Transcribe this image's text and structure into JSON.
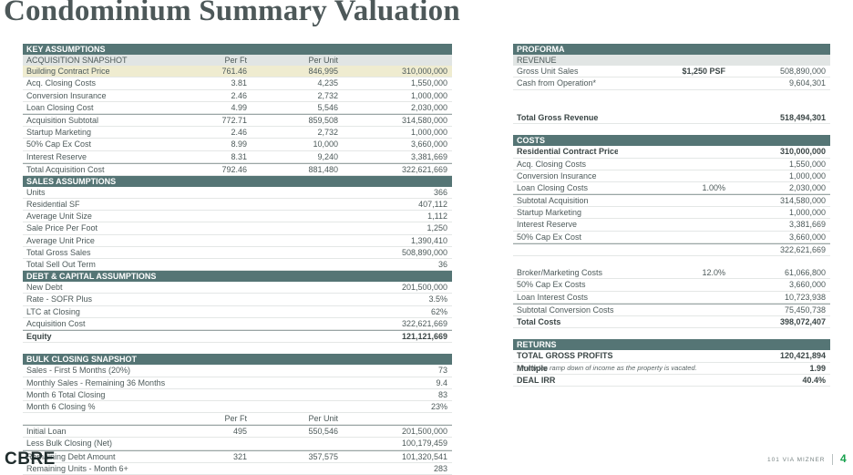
{
  "title": "Condominium Summary Valuation",
  "logo": "CBRE",
  "footer": {
    "property": "101 VIA MIZNER",
    "page": "4"
  },
  "note": "* Includes ramp down of income as the property is vacated.",
  "key_assumptions": {
    "header": "KEY ASSUMPTIONS",
    "sub": {
      "label": "ACQUISITION SNAPSHOT",
      "per_ft": "Per Ft",
      "per_unit": "Per Unit"
    },
    "rows": [
      {
        "label": "Building Contract Price",
        "per_ft": "761.46",
        "per_unit": "846,995",
        "total": "310,000,000"
      },
      {
        "label": "Acq. Closing Costs",
        "per_ft": "3.81",
        "per_unit": "4,235",
        "total": "1,550,000"
      },
      {
        "label": "Conversion Insurance",
        "per_ft": "2.46",
        "per_unit": "2,732",
        "total": "1,000,000"
      },
      {
        "label": "Loan Closing Cost",
        "per_ft": "4.99",
        "per_unit": "5,546",
        "total": "2,030,000"
      },
      {
        "label": "Acquisition Subtotal",
        "per_ft": "772.71",
        "per_unit": "859,508",
        "total": "314,580,000"
      },
      {
        "label": "Startup Marketing",
        "per_ft": "2.46",
        "per_unit": "2,732",
        "total": "1,000,000"
      },
      {
        "label": "50% Cap Ex Cost",
        "per_ft": "8.99",
        "per_unit": "10,000",
        "total": "3,660,000"
      },
      {
        "label": "Interest Reserve",
        "per_ft": "8.31",
        "per_unit": "9,240",
        "total": "3,381,669"
      },
      {
        "label": "Total Acquisition Cost",
        "per_ft": "792.46",
        "per_unit": "881,480",
        "total": "322,621,669"
      }
    ]
  },
  "sales_assumptions": {
    "header": "SALES ASSUMPTIONS",
    "rows": [
      {
        "label": "Units",
        "value": "366"
      },
      {
        "label": "Residential SF",
        "value": "407,112"
      },
      {
        "label": "Average Unit Size",
        "value": "1,112"
      },
      {
        "label": "Sale Price Per Foot",
        "value": "1,250"
      },
      {
        "label": "Average Unit Price",
        "value": "1,390,410"
      },
      {
        "label": "Total Gross Sales",
        "value": "508,890,000"
      },
      {
        "label": "Total Sell Out Term",
        "value": "36"
      }
    ]
  },
  "debt_capital": {
    "header": "DEBT & CAPITAL ASSUMPTIONS",
    "rows": [
      {
        "label": "New Debt",
        "value": "201,500,000"
      },
      {
        "label": "Rate - SOFR Plus",
        "value": "3.5%"
      },
      {
        "label": "LTC at Closing",
        "value": "62%"
      },
      {
        "label": "Acquisition Cost",
        "value": "322,621,669"
      },
      {
        "label": "Equity",
        "value": "121,121,669"
      }
    ]
  },
  "bulk_closing": {
    "header": "BULK CLOSING SNAPSHOT",
    "rows": [
      {
        "label": "Sales - First 5 Months (20%)",
        "value": "73"
      },
      {
        "label": "Monthly Sales - Remaining 36 Months",
        "value": "9.4"
      },
      {
        "label": "Month 6 Total Closing",
        "value": "83"
      },
      {
        "label": "Month 6 Closing %",
        "value": "23%"
      }
    ],
    "col_per_ft": "Per Ft",
    "col_per_unit": "Per Unit",
    "rows2": [
      {
        "label": "Initial Loan",
        "per_ft": "495",
        "per_unit": "550,546",
        "total": "201,500,000"
      },
      {
        "label": "Less Bulk Closing (Net)",
        "per_ft": "",
        "per_unit": "",
        "total": "100,179,459"
      },
      {
        "label": "Remaining Debt Amount",
        "per_ft": "321",
        "per_unit": "357,575",
        "total": "101,320,541"
      },
      {
        "label": "Remaining Units - Month 6+",
        "per_ft": "",
        "per_unit": "",
        "total": "283"
      }
    ]
  },
  "proforma": {
    "header": "PROFORMA",
    "sub": "REVENUE",
    "revenue": [
      {
        "label": "Gross Unit Sales",
        "mid": "$1,250 PSF",
        "value": "508,890,000"
      },
      {
        "label": "Cash from Operation*",
        "mid": "",
        "value": "9,604,301"
      }
    ],
    "total_revenue": {
      "label": "Total Gross Revenue",
      "value": "518,494,301"
    }
  },
  "costs": {
    "header": "COSTS",
    "rows": [
      {
        "label": "Residential Contract Price",
        "mid": "",
        "value": "310,000,000",
        "bold": true
      },
      {
        "label": "Acq. Closing Costs",
        "mid": "",
        "value": "1,550,000"
      },
      {
        "label": "Conversion Insurance",
        "mid": "",
        "value": "1,000,000"
      },
      {
        "label": "Loan Closing Costs",
        "mid": "1.00%",
        "value": "2,030,000"
      },
      {
        "label": "Subtotal Acquisition",
        "mid": "",
        "value": "314,580,000"
      },
      {
        "label": "Startup Marketing",
        "mid": "",
        "value": "1,000,000"
      },
      {
        "label": "Interest Reserve",
        "mid": "",
        "value": "3,381,669"
      },
      {
        "label": "50% Cap Ex Cost",
        "mid": "",
        "value": "3,660,000"
      },
      {
        "label": "",
        "mid": "",
        "value": "322,621,669"
      }
    ],
    "rows2": [
      {
        "label": "Broker/Marketing Costs",
        "mid": "12.0%",
        "value": "61,066,800"
      },
      {
        "label": "50% Cap Ex Costs",
        "mid": "",
        "value": "3,660,000"
      },
      {
        "label": "Loan Interest Costs",
        "mid": "",
        "value": "10,723,938"
      },
      {
        "label": "Subtotal Conversion Costs",
        "mid": "",
        "value": "75,450,738"
      },
      {
        "label": "Total Costs",
        "mid": "",
        "value": "398,072,407",
        "bold": true
      }
    ]
  },
  "returns": {
    "header": "RETURNS",
    "rows": [
      {
        "label": "TOTAL GROSS PROFITS",
        "value": "120,421,894"
      },
      {
        "label": "Multiple",
        "value": "1.99"
      },
      {
        "label": "DEAL IRR",
        "value": "40.4%"
      }
    ]
  }
}
